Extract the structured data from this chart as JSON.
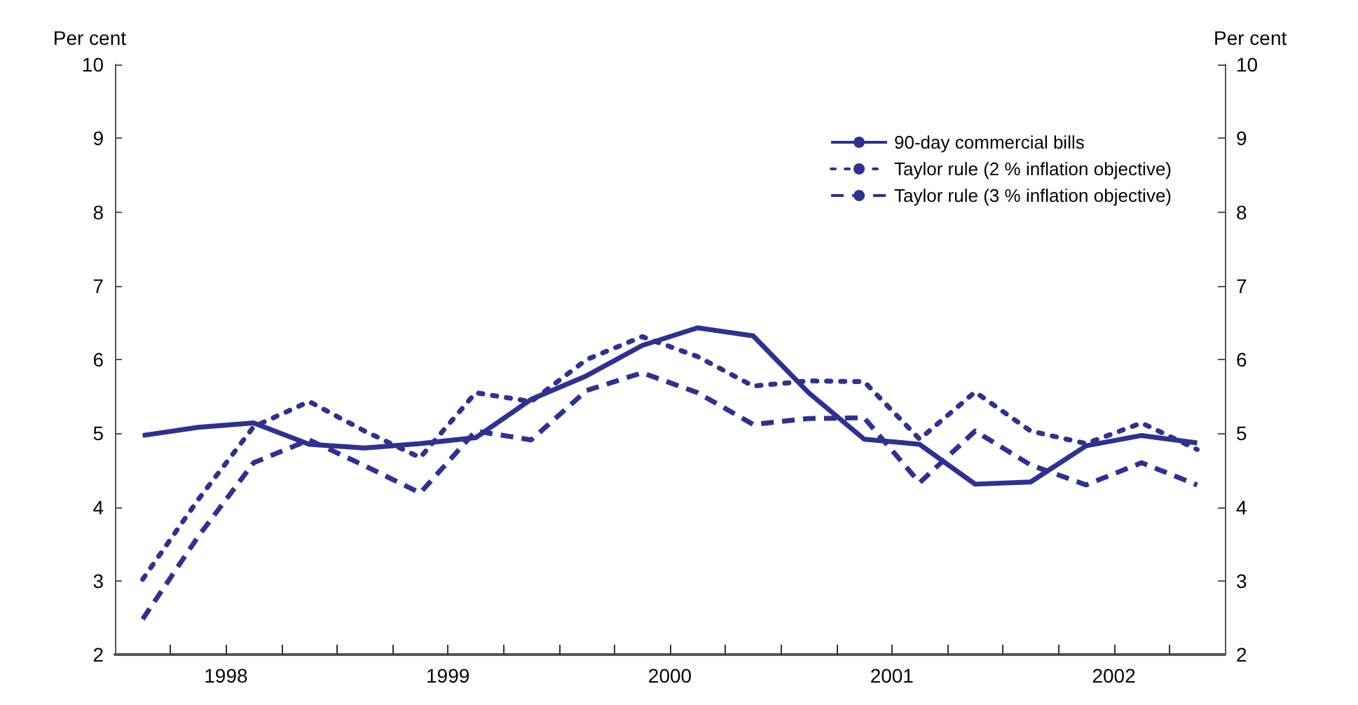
{
  "chart_data": {
    "type": "line",
    "ylabel": "Per cent",
    "y2label": "Per cent",
    "x": [
      1998.125,
      1998.375,
      1998.625,
      1998.875,
      1999.125,
      1999.375,
      1999.625,
      1999.875,
      2000.125,
      2000.375,
      2000.625,
      2000.875,
      2001.125,
      2001.375,
      2001.625,
      2001.875,
      2002.125,
      2002.375,
      2002.625,
      2002.875
    ],
    "series": [
      {
        "name": "90-day commercial bills",
        "color": "#2e3192",
        "line_style": "solid",
        "values": [
          4.97,
          5.08,
          5.14,
          4.85,
          4.8,
          4.86,
          4.94,
          5.46,
          5.78,
          6.19,
          6.43,
          6.32,
          5.55,
          4.92,
          4.85,
          4.31,
          4.34,
          4.83,
          4.97,
          4.87
        ]
      },
      {
        "name": "Taylor rule (2 % inflation objective)",
        "color": "#2e3192",
        "line_style": "dotted",
        "values": [
          3.02,
          4.1,
          5.09,
          5.43,
          5.03,
          4.67,
          5.55,
          5.43,
          6.0,
          6.31,
          6.04,
          5.64,
          5.71,
          5.7,
          4.92,
          5.56,
          5.03,
          4.86,
          5.14,
          4.78
        ]
      },
      {
        "name": "Taylor rule (3 % inflation objective)",
        "color": "#2e3192",
        "line_style": "dashed",
        "values": [
          2.48,
          3.6,
          4.6,
          4.91,
          4.56,
          4.19,
          5.03,
          4.91,
          5.58,
          5.82,
          5.55,
          5.12,
          5.2,
          5.21,
          4.33,
          5.03,
          4.57,
          4.3,
          4.6,
          4.3
        ]
      }
    ],
    "xlim": [
      1998,
      2003
    ],
    "xticks": [
      {
        "value": 1998.25,
        "label": null
      },
      {
        "value": 1998.5,
        "label": "1998"
      },
      {
        "value": 1998.75,
        "label": null
      },
      {
        "value": 1999,
        "label": null
      },
      {
        "value": 1999.25,
        "label": null
      },
      {
        "value": 1999.5,
        "label": "1999"
      },
      {
        "value": 1999.75,
        "label": null
      },
      {
        "value": 2000,
        "label": null
      },
      {
        "value": 2000.25,
        "label": null
      },
      {
        "value": 2000.5,
        "label": "2000"
      },
      {
        "value": 2000.75,
        "label": null
      },
      {
        "value": 2001,
        "label": null
      },
      {
        "value": 2001.25,
        "label": null
      },
      {
        "value": 2001.5,
        "label": "2001"
      },
      {
        "value": 2001.75,
        "label": null
      },
      {
        "value": 2002,
        "label": null
      },
      {
        "value": 2002.25,
        "label": null
      },
      {
        "value": 2002.5,
        "label": "2002"
      },
      {
        "value": 2002.75,
        "label": null
      }
    ],
    "ylim": [
      2,
      10
    ],
    "yticks": [
      2,
      3,
      4,
      5,
      6,
      7,
      8,
      9,
      10
    ],
    "y2lim": [
      2,
      10
    ],
    "y2ticks": [
      2,
      3,
      4,
      5,
      6,
      7,
      8,
      9,
      10
    ],
    "grid": false,
    "legend": "top right",
    "marker": "none"
  }
}
